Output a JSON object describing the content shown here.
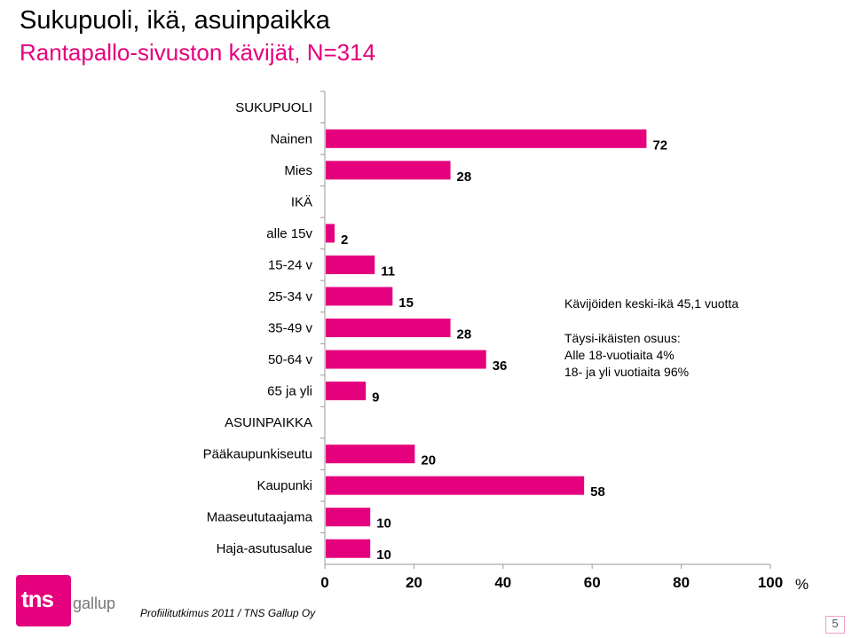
{
  "title": "Sukupuoli, ikä, asuinpaikka",
  "subtitle": "Rantapallo-sivuston kävijät, N=314",
  "chart_data": {
    "type": "bar",
    "orientation": "horizontal",
    "unit": "%",
    "xlim": [
      0,
      100
    ],
    "xticks": [
      0,
      20,
      40,
      60,
      80,
      100
    ],
    "bar_color": "#e5007d",
    "rows": [
      {
        "label": "SUKUPUOLI",
        "value": null
      },
      {
        "label": "Nainen",
        "value": 72
      },
      {
        "label": "Mies",
        "value": 28
      },
      {
        "label": "IKÄ",
        "value": null
      },
      {
        "label": "alle 15v",
        "value": 2
      },
      {
        "label": "15-24 v",
        "value": 11
      },
      {
        "label": "25-34 v",
        "value": 15
      },
      {
        "label": "35-49 v",
        "value": 28
      },
      {
        "label": "50-64 v",
        "value": 36
      },
      {
        "label": "65 ja yli",
        "value": 9
      },
      {
        "label": "ASUINPAIKKA",
        "value": null
      },
      {
        "label": "Pääkaupunkiseutu",
        "value": 20
      },
      {
        "label": "Kaupunki",
        "value": 58
      },
      {
        "label": "Maaseututaajama",
        "value": 10
      },
      {
        "label": "Haja-asutusalue",
        "value": 10
      }
    ]
  },
  "notes": {
    "avg_age": "Kävijöiden keski-ikä 45,1 vuotta",
    "adult_share_title": "Täysi-ikäisten osuus:",
    "under18": "Alle 18-vuotiaita 4%",
    "over18": "18- ja yli vuotiaita 96%"
  },
  "logo": {
    "brand": "tns",
    "sub": "gallup"
  },
  "footer": "Profiilitutkimus 2011 / TNS Gallup Oy",
  "page_number": "5"
}
